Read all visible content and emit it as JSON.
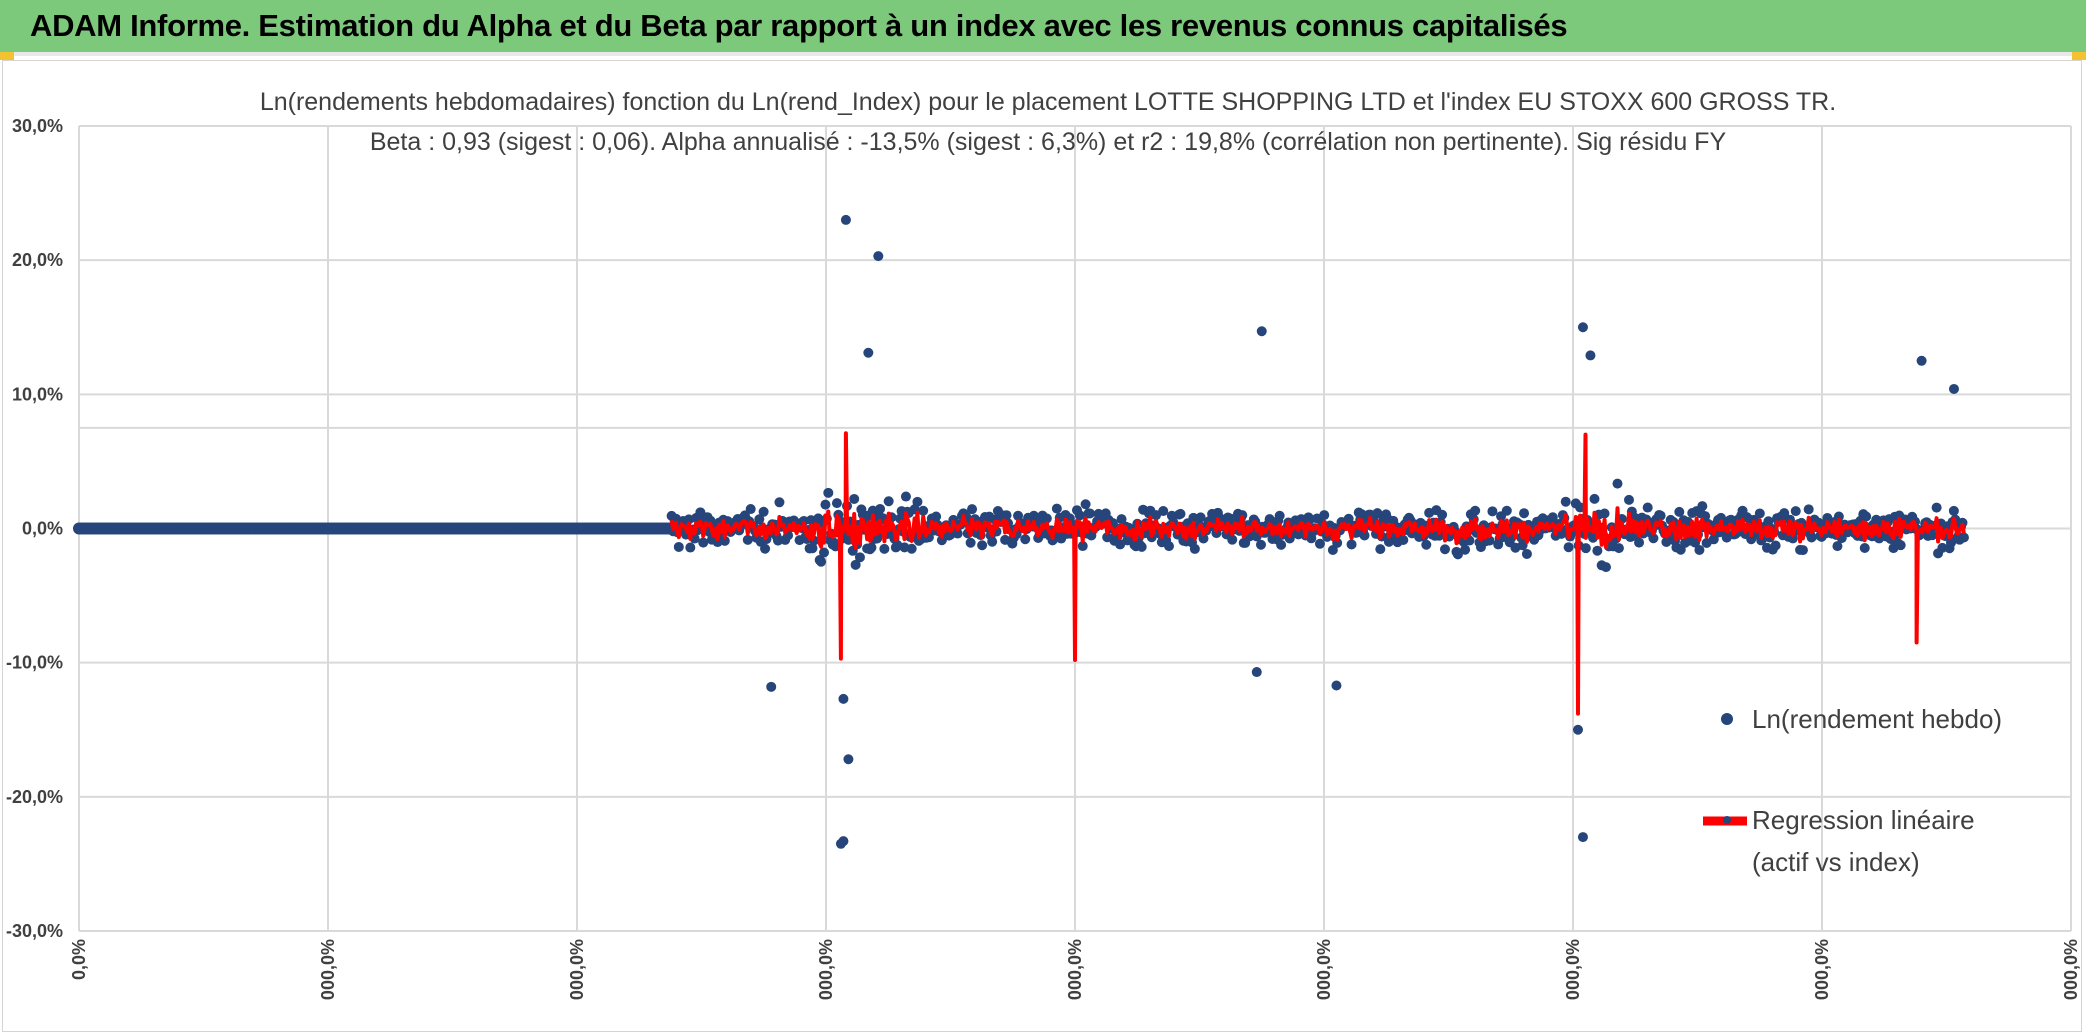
{
  "banner": {
    "title": "ADAM Informe. Estimation du Alpha et du Beta par rapport à un index avec les revenus connus capitalisés",
    "color": "#7dc97b"
  },
  "chart_data": {
    "type": "scatter",
    "title_line1": "Ln(rendements hebdomadaires) fonction du Ln(rend_Index) pour le placement LOTTE SHOPPING LTD et l'index EU STOXX 600 GROSS TR.",
    "title_line2": "Beta : 0,93 (sigest : 0,06). Alpha annualisé : -13,5% (sigest : 6,3%) et r2 : 19,8% (corrélation non pertinente). Sig résidu FY",
    "y_ticks": [
      "30,0%",
      "20,0%",
      "10,0%",
      "0,0%",
      "-10,0%",
      "-20,0%",
      "-30,0%"
    ],
    "x_ticks": [
      "0,0%",
      "000,0%",
      "000,0%",
      "000,0%",
      "000,0%",
      "000,0%",
      "000,0%",
      "000,0%",
      "000,0%"
    ],
    "ylim": [
      -0.3,
      0.3
    ],
    "xlim": [
      0,
      8
    ],
    "grid": true,
    "legend_position": "right",
    "series": [
      {
        "name": "Ln(rendement hebdo)",
        "kind": "points",
        "color": "#26457a",
        "zero_segment": [
          0,
          2.38
        ],
        "active_range": [
          2.38,
          7.57
        ],
        "points_count": 900,
        "outliers": [
          {
            "x": 3.08,
            "y": 0.23
          },
          {
            "x": 3.21,
            "y": 0.203
          },
          {
            "x": 3.17,
            "y": 0.131
          },
          {
            "x": 3.07,
            "y": -0.233
          },
          {
            "x": 3.06,
            "y": -0.235
          },
          {
            "x": 3.09,
            "y": -0.172
          },
          {
            "x": 3.07,
            "y": -0.127
          },
          {
            "x": 4.75,
            "y": 0.147
          },
          {
            "x": 6.04,
            "y": 0.15
          },
          {
            "x": 6.07,
            "y": 0.129
          },
          {
            "x": 6.02,
            "y": -0.15
          },
          {
            "x": 6.04,
            "y": -0.23
          },
          {
            "x": 7.4,
            "y": 0.125
          },
          {
            "x": 7.53,
            "y": 0.104
          },
          {
            "x": 2.78,
            "y": -0.118
          },
          {
            "x": 4.73,
            "y": -0.107
          },
          {
            "x": 5.05,
            "y": -0.117
          }
        ]
      },
      {
        "name": "Regression linéaire (actif vs index)",
        "kind": "line",
        "color": "#ff0000",
        "beta": 0.93,
        "alpha_annual": -0.135,
        "spikes": [
          {
            "x": 3.08,
            "y": 0.071
          },
          {
            "x": 3.06,
            "y": -0.097
          },
          {
            "x": 4.0,
            "y": -0.098
          },
          {
            "x": 6.02,
            "y": -0.138
          },
          {
            "x": 6.05,
            "y": 0.07
          },
          {
            "x": 7.38,
            "y": -0.085
          }
        ]
      }
    ],
    "legend": {
      "scatter_label": "Ln(rendement hebdo)",
      "line_label_1": "Regression linéaire",
      "line_label_2": "(actif vs index)"
    }
  }
}
